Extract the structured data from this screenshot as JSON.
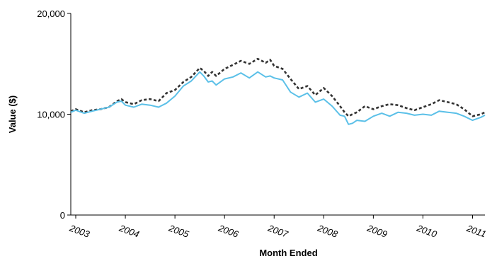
{
  "chart_data": {
    "type": "line",
    "title": "",
    "xlabel": "Month Ended",
    "ylabel": "Value ($)",
    "ylim": [
      0,
      20000
    ],
    "y_ticks": [
      0,
      10000,
      20000
    ],
    "y_tick_labels": [
      "0",
      "10,000",
      "20,000"
    ],
    "x_range": [
      2002.9,
      2011.25
    ],
    "x_ticks": [
      2003,
      2004,
      2005,
      2006,
      2007,
      2008,
      2009,
      2010,
      2011
    ],
    "x_tick_labels": [
      "2003",
      "2004",
      "2005",
      "2006",
      "2007",
      "2008",
      "2009",
      "2010",
      "2011"
    ],
    "grid": false,
    "legend": "none",
    "series": [
      {
        "color": "#333333",
        "style": "dashed",
        "x": [
          2002.9,
          2003.0,
          2003.17,
          2003.33,
          2003.5,
          2003.67,
          2003.83,
          2003.92,
          2004.0,
          2004.17,
          2004.33,
          2004.5,
          2004.67,
          2004.83,
          2005.0,
          2005.17,
          2005.33,
          2005.5,
          2005.58,
          2005.67,
          2005.75,
          2005.83,
          2006.0,
          2006.17,
          2006.33,
          2006.5,
          2006.67,
          2006.83,
          2006.92,
          2007.0,
          2007.17,
          2007.33,
          2007.5,
          2007.67,
          2007.83,
          2008.0,
          2008.17,
          2008.33,
          2008.42,
          2008.5,
          2008.58,
          2008.67,
          2008.83,
          2009.0,
          2009.17,
          2009.33,
          2009.5,
          2009.67,
          2009.83,
          2010.0,
          2010.17,
          2010.33,
          2010.5,
          2010.67,
          2010.83,
          2011.0,
          2011.17,
          2011.25
        ],
        "y": [
          10300,
          10500,
          10200,
          10400,
          10500,
          10700,
          11300,
          11500,
          11200,
          11000,
          11400,
          11500,
          11300,
          12100,
          12400,
          13200,
          13700,
          14600,
          14300,
          13800,
          14200,
          13800,
          14500,
          14900,
          15300,
          15000,
          15500,
          15100,
          15400,
          14800,
          14500,
          13500,
          12500,
          12800,
          11900,
          12600,
          11800,
          10800,
          10200,
          9800,
          10000,
          10200,
          10800,
          10500,
          10800,
          11000,
          10900,
          10600,
          10400,
          10700,
          11000,
          11400,
          11200,
          11000,
          10500,
          9800,
          10000,
          10200
        ]
      },
      {
        "color": "#5bc0e8",
        "style": "solid",
        "x": [
          2002.9,
          2003.0,
          2003.17,
          2003.33,
          2003.5,
          2003.67,
          2003.83,
          2003.92,
          2004.0,
          2004.17,
          2004.33,
          2004.5,
          2004.67,
          2004.83,
          2005.0,
          2005.17,
          2005.33,
          2005.5,
          2005.58,
          2005.67,
          2005.75,
          2005.83,
          2006.0,
          2006.17,
          2006.33,
          2006.5,
          2006.67,
          2006.83,
          2006.92,
          2007.0,
          2007.17,
          2007.33,
          2007.5,
          2007.67,
          2007.83,
          2008.0,
          2008.17,
          2008.33,
          2008.42,
          2008.5,
          2008.58,
          2008.67,
          2008.83,
          2009.0,
          2009.17,
          2009.33,
          2009.5,
          2009.67,
          2009.83,
          2010.0,
          2010.17,
          2010.33,
          2010.5,
          2010.67,
          2010.83,
          2011.0,
          2011.17,
          2011.25
        ],
        "y": [
          10200,
          10400,
          10100,
          10300,
          10500,
          10700,
          11200,
          11300,
          10900,
          10700,
          11000,
          10900,
          10700,
          11100,
          11800,
          12800,
          13300,
          14200,
          13800,
          13200,
          13300,
          12900,
          13500,
          13700,
          14100,
          13600,
          14200,
          13700,
          13800,
          13600,
          13400,
          12200,
          11700,
          12100,
          11200,
          11500,
          10800,
          9900,
          9800,
          9000,
          9100,
          9400,
          9300,
          9800,
          10100,
          9800,
          10200,
          10100,
          9900,
          10000,
          9900,
          10300,
          10200,
          10100,
          9800,
          9400,
          9700,
          9900
        ]
      }
    ]
  }
}
